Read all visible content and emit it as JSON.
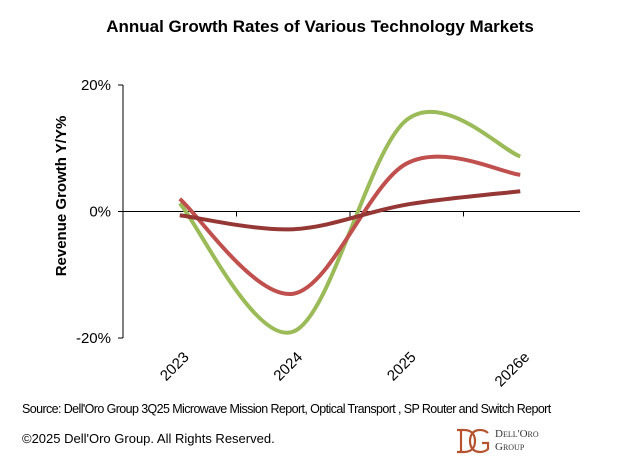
{
  "chart_data": {
    "type": "line",
    "title": "Annual Growth Rates of Various Technology Markets",
    "xlabel": "",
    "ylabel": "Revenue Growth Y/Y%",
    "categories": [
      "2023",
      "2024",
      "2025",
      "2026e"
    ],
    "ylim": [
      -20,
      20
    ],
    "yticks": [
      "20%",
      "0%",
      "-20%"
    ],
    "ytick_values": [
      20,
      0,
      -20
    ],
    "grid": false,
    "legend": "none",
    "smoothed": true,
    "series": [
      {
        "color": "#9bbb59",
        "values": [
          1.3,
          -19,
          14.5,
          8.7
        ]
      },
      {
        "color": "#c0504d",
        "values": [
          2,
          -13,
          7.6,
          5.8
        ]
      },
      {
        "color": "#953735",
        "values": [
          -0.6,
          -2.8,
          1.1,
          3.2
        ]
      }
    ]
  },
  "footer": {
    "source": "Source: Dell'Oro Group 3Q25 Microwave Mission Report, Optical Transport , SP Router and Switch Report",
    "copyright": "©2025 Dell'Oro Group. All Rights Reserved."
  },
  "logo": {
    "monogram": "DG",
    "line1": "Dell'Oro",
    "line2": "Group",
    "color": "#b5532e"
  }
}
